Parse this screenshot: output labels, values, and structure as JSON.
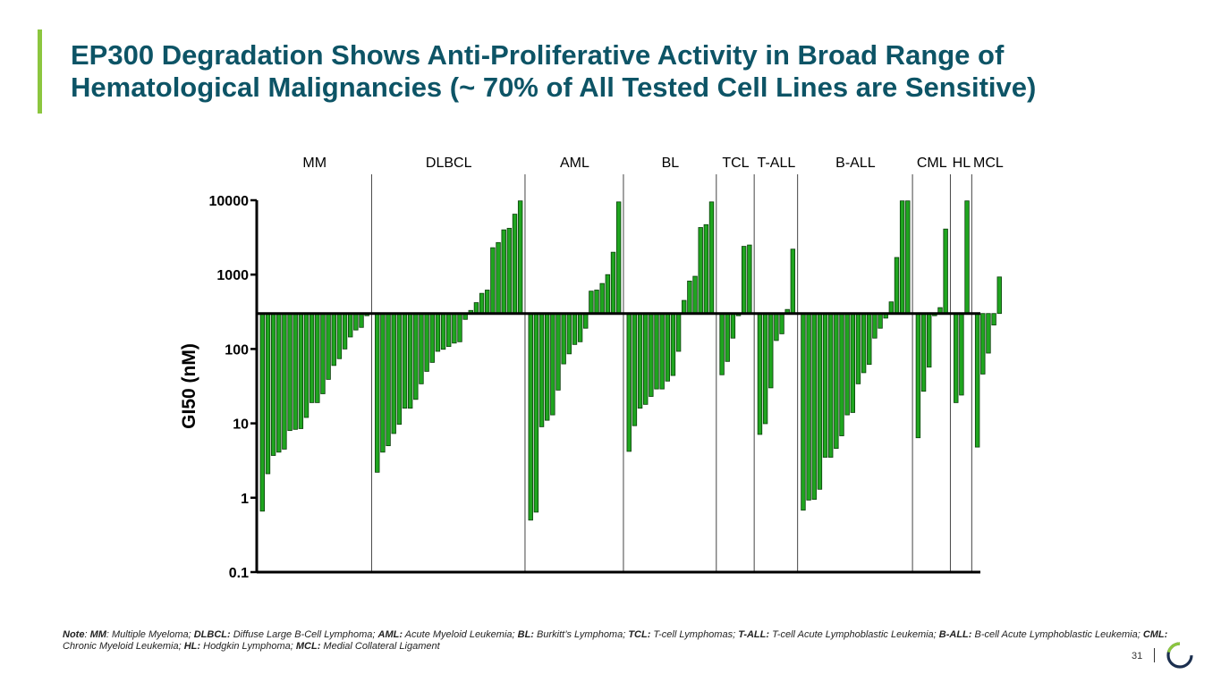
{
  "slide": {
    "title_line1": "EP300 Degradation Shows Anti-Proliferative Activity in Broad Range of",
    "title_line2": "Hematological Malignancies (~ 70% of All Tested Cell Lines are Sensitive)",
    "accent_color": "#8cc63f",
    "title_color": "#0d5466",
    "page_number": "31",
    "logo_icon": "ring-logo-icon"
  },
  "note": {
    "lead": "Note",
    "items": [
      {
        "abbr": "MM",
        "text": "Multiple Myeloma;"
      },
      {
        "abbr": "DLBCL:",
        "text": "Diffuse Large B-Cell Lymphoma;"
      },
      {
        "abbr": "AML:",
        "text": "Acute Myeloid Leukemia;"
      },
      {
        "abbr": "BL:",
        "text": "Burkitt’s Lymphoma;"
      },
      {
        "abbr": "TCL:",
        "text": "T-cell Lymphomas;"
      },
      {
        "abbr": "T-ALL:",
        "text": "T-cell Acute Lymphoblastic Leukemia;"
      },
      {
        "abbr": "B-ALL:",
        "text": "B-cell Acute Lymphoblastic Leukemia;"
      },
      {
        "abbr": "CML:",
        "text": "Chronic Myeloid Leukemia;"
      },
      {
        "abbr": "HL:",
        "text": "Hodgkin Lymphoma;"
      },
      {
        "abbr": "MCL:",
        "text": "Medial Collateral Ligament"
      }
    ]
  },
  "chart_data": {
    "type": "bar",
    "title": "",
    "xlabel": "",
    "ylabel": "GI50 (nM)",
    "yscale": "log",
    "ylim": [
      0.1,
      10000
    ],
    "yticks": [
      0.1,
      1,
      10,
      100,
      1000,
      10000
    ],
    "ytick_labels": [
      "0.1",
      "1",
      "10",
      "100",
      "1000",
      "10000"
    ],
    "baseline": 300,
    "bar_color": "#1fa51f",
    "bar_edge_color": "#0b3d0b",
    "grid": false,
    "legend": "none",
    "groups": [
      {
        "name": "MM",
        "values": [
          0.66,
          2.1,
          3.7,
          4.1,
          4.5,
          8,
          8.3,
          8.5,
          12,
          19,
          19,
          25,
          39,
          60,
          74,
          100,
          145,
          180,
          195,
          280
        ]
      },
      {
        "name": "DLBCL",
        "values": [
          2.2,
          4.1,
          5,
          7.3,
          9.7,
          16,
          16,
          21,
          34,
          50,
          66,
          93,
          99,
          108,
          120,
          125,
          250,
          330,
          420,
          560,
          620,
          2300,
          2700,
          4000,
          4200,
          6500,
          9800
        ]
      },
      {
        "name": "AML",
        "values": [
          0.5,
          0.64,
          9,
          11,
          13,
          28,
          63,
          86,
          115,
          125,
          190,
          600,
          620,
          760,
          1000,
          2000,
          9500
        ]
      },
      {
        "name": "BL",
        "values": [
          4.2,
          9.3,
          16,
          18,
          23,
          29,
          29,
          37,
          44,
          93,
          450,
          820,
          950,
          4300,
          4700,
          9500
        ]
      },
      {
        "name": "TCL",
        "values": [
          45,
          68,
          140,
          280,
          2400,
          2500
        ]
      },
      {
        "name": "T-ALL",
        "values": [
          7.1,
          9.9,
          30,
          130,
          160,
          340,
          2200
        ]
      },
      {
        "name": "B-ALL",
        "values": [
          0.68,
          0.93,
          0.95,
          1.3,
          3.5,
          3.5,
          4.6,
          6.8,
          13,
          14,
          34,
          48,
          62,
          140,
          190,
          260,
          430,
          1700,
          9800,
          9800
        ]
      },
      {
        "name": "CML",
        "values": [
          6.4,
          27,
          57,
          280,
          360,
          4100
        ]
      },
      {
        "name": "HL",
        "values": [
          19,
          24,
          9800
        ]
      },
      {
        "name": "MCL",
        "values": [
          4.8,
          46,
          88,
          210,
          930
        ]
      }
    ]
  }
}
